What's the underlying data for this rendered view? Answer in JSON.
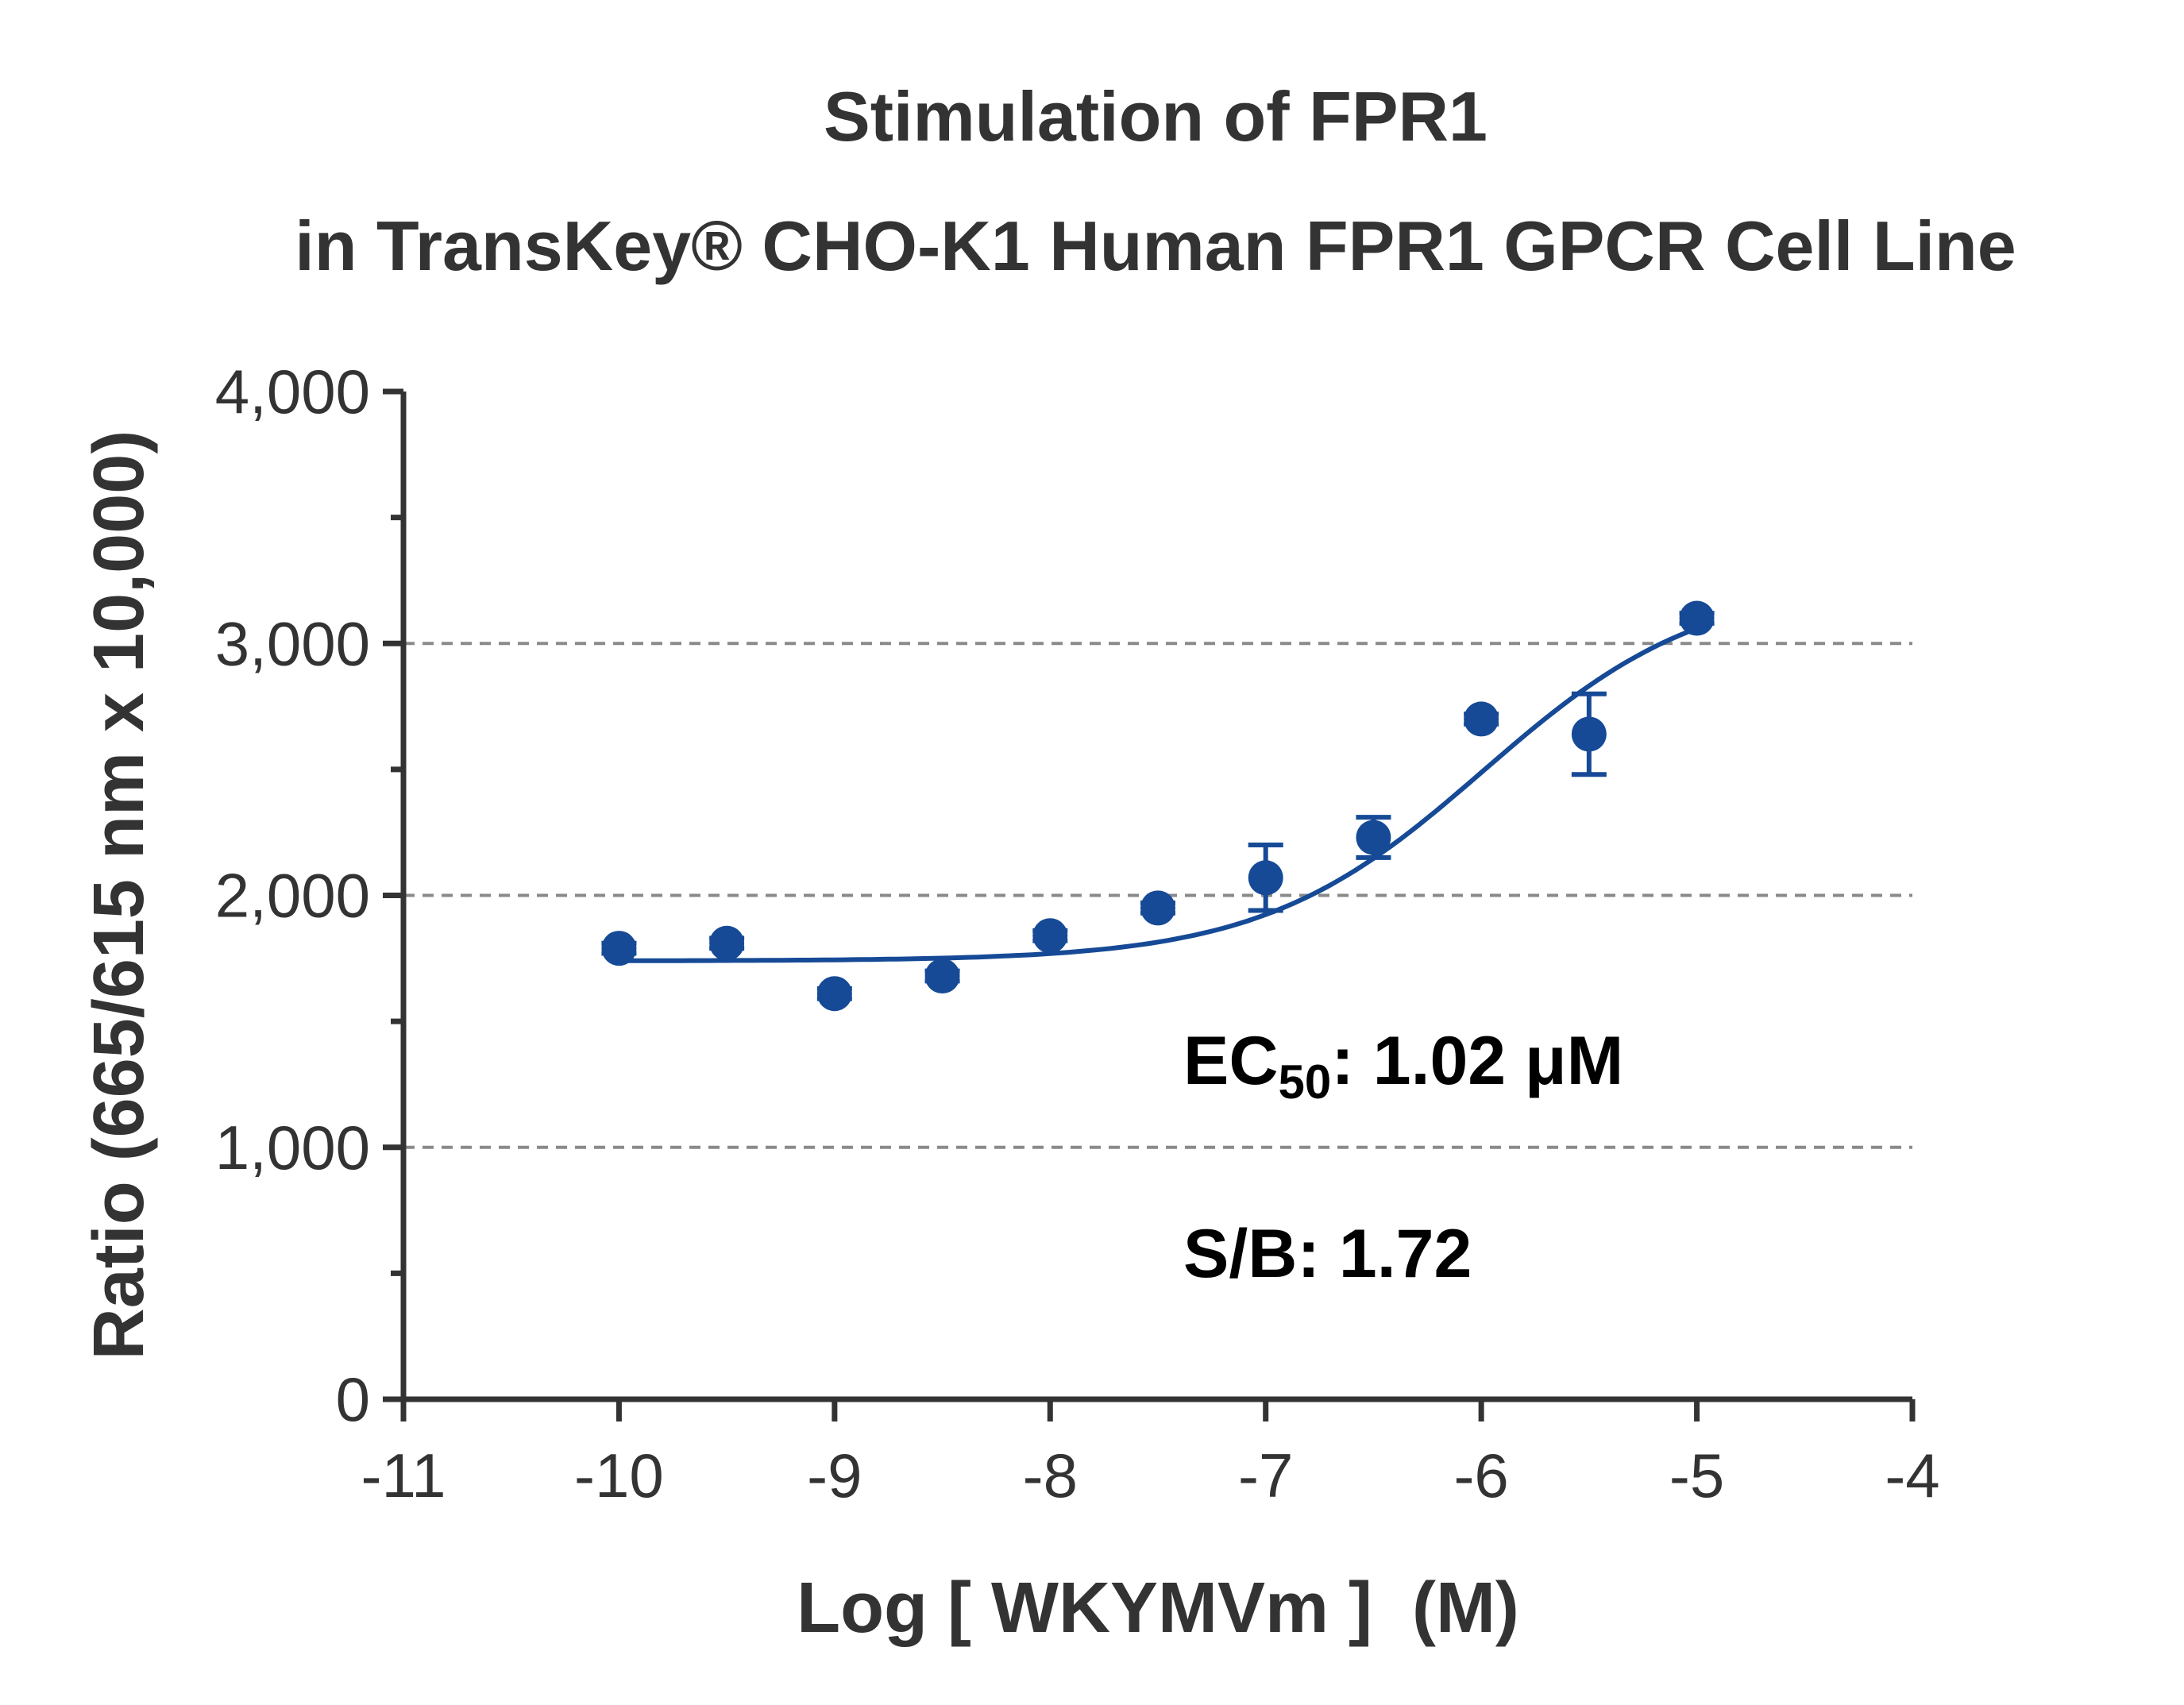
{
  "colors": {
    "series": "#164a96",
    "axis": "#333333",
    "grid": "#8a8a8a",
    "text": "#333333"
  },
  "chart_data": {
    "type": "scatter",
    "title": "Stimulation of FPR1",
    "subtitle": "in TransKey® CHO-K1 Human FPR1 GPCR Cell Line",
    "xlabel": "Log [ WKYMVm ]  (M)",
    "ylabel": "Ratio (665/615 nm x 10,000)",
    "xlim": [
      -11,
      -4
    ],
    "ylim": [
      0,
      4000
    ],
    "x_ticks": [
      -11,
      -10,
      -9,
      -8,
      -7,
      -6,
      -5,
      -4
    ],
    "x_tick_labels": [
      "-11",
      "-10",
      "-9",
      "-8",
      "-7",
      "-6",
      "-5",
      "-4"
    ],
    "y_ticks": [
      0,
      1000,
      2000,
      3000,
      4000
    ],
    "y_tick_labels": [
      "0",
      "1,000",
      "2,000",
      "3,000",
      "4,000"
    ],
    "grid": "horizontal dashed at 1,000, 2,000 and 3,000",
    "series": [
      {
        "x": [
          -10,
          -9.5,
          -9,
          -8.5,
          -8,
          -7.5,
          -7,
          -6.5,
          -6,
          -5.5,
          -5
        ],
        "y": [
          1790,
          1810,
          1610,
          1680,
          1840,
          1950,
          2070,
          2230,
          2700,
          2640,
          3100
        ],
        "error": [
          20,
          20,
          20,
          20,
          20,
          20,
          130,
          80,
          20,
          160,
          20
        ]
      }
    ],
    "fit": {
      "model": "sigmoidal dose-response",
      "bottom": 1740,
      "top": 3250,
      "log_ec50": -5.99,
      "hill": 0.85,
      "x_range": [
        -10,
        -5
      ]
    },
    "annotations": {
      "ec50_prefix": "EC",
      "ec50_subscript": "50",
      "ec50_value": ": 1.02 μM",
      "sb": "S/B: 1.72"
    }
  }
}
